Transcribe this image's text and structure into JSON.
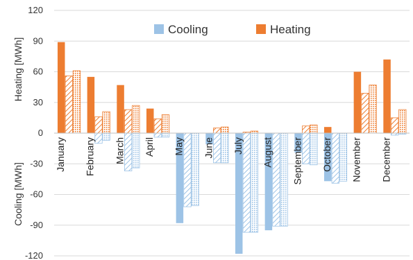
{
  "chart_data": {
    "type": "bar",
    "categories": [
      "January",
      "February",
      "March",
      "April",
      "May",
      "June",
      "July",
      "August",
      "September",
      "October",
      "November",
      "December"
    ],
    "ylabel_top": "Heating [MWh]",
    "ylabel_bottom": "Cooling [MWh]",
    "ylim": [
      -120,
      120
    ],
    "yticks": [
      "120",
      "90",
      "60",
      "30",
      "0",
      "-30",
      "-60",
      "-90",
      "-120"
    ],
    "legend": {
      "placement": "top-center",
      "items": [
        {
          "label": "Cooling",
          "color": "#9dc3e6"
        },
        {
          "label": "Heating",
          "color": "#ed7d31"
        }
      ]
    },
    "series": [
      {
        "group": "Heating",
        "pattern": "solid",
        "values": [
          89,
          55,
          47,
          24,
          0,
          0,
          0,
          0,
          0,
          6,
          60,
          72
        ]
      },
      {
        "group": "Heating",
        "pattern": "hatched",
        "values": [
          56,
          16,
          23,
          14,
          0,
          5,
          1,
          0,
          7,
          0,
          39,
          15
        ]
      },
      {
        "group": "Heating",
        "pattern": "dotted",
        "values": [
          61,
          21,
          27,
          18,
          0,
          6,
          2,
          0,
          8,
          0,
          47,
          23
        ]
      },
      {
        "group": "Cooling",
        "pattern": "solid",
        "values": [
          0,
          0,
          0,
          0,
          -88,
          -11,
          -118,
          -95,
          -19,
          -47,
          0,
          0
        ]
      },
      {
        "group": "Cooling",
        "pattern": "hatched",
        "values": [
          0,
          -10,
          -37,
          -4,
          -72,
          -29,
          -97,
          -91,
          -30,
          -49,
          0,
          -2
        ]
      },
      {
        "group": "Cooling",
        "pattern": "dotted",
        "values": [
          0,
          -7,
          -34,
          -4,
          -71,
          -29,
          -97,
          -91,
          -31,
          -47,
          0,
          -1
        ]
      }
    ],
    "colors": {
      "heating": "#ed7d31",
      "cooling": "#9dc3e6",
      "heating_dark": "#ed7d31",
      "cooling_dark": "#5b9bd5"
    }
  }
}
